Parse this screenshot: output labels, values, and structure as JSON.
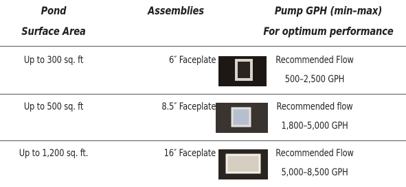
{
  "table": {
    "header": [
      [
        "Pond",
        "Surface Area"
      ],
      [
        "Assemblies"
      ],
      [
        "Pump GPH (min–max)",
        "For optimum performance"
      ]
    ],
    "rows": [
      [
        "Up to 300 sq. ft",
        "6″ Faceplate",
        "Recommended Flow",
        "500–2,500 GPH"
      ],
      [
        "Up to 500 sq. ft",
        "8.5″ Faceplate",
        "Recommended flow",
        "1,800–5,000 GPH"
      ],
      [
        "Up to 1,200 sq. ft.",
        "16″ Faceplate",
        "Recommended Flow",
        "5,000–8,500 GPH"
      ]
    ]
  }
}
